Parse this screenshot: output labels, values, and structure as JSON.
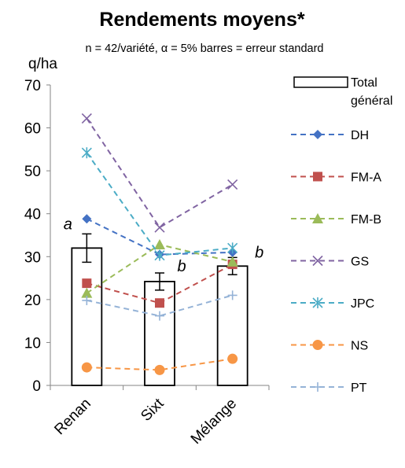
{
  "chart_data": {
    "type": "bar",
    "title": "Rendements moyens*",
    "subtitle": "n = 42/variété, α = 5% barres = erreur standard",
    "ylabel": "q/ha",
    "ylim": [
      0,
      70
    ],
    "yticks": [
      0,
      10,
      20,
      30,
      40,
      50,
      60,
      70
    ],
    "categories": [
      "Renan",
      "Sixt",
      "Mélange"
    ],
    "grid": false,
    "legend_position": "right",
    "bar_series": {
      "name": "Total général",
      "values": [
        32.0,
        24.2,
        27.8
      ],
      "errors": [
        3.3,
        2.0,
        2.0
      ],
      "significance_letters": [
        "a",
        "b",
        "b"
      ],
      "color": "#000000"
    },
    "line_series": [
      {
        "name": "DH",
        "values": [
          38.8,
          30.5,
          31.0
        ],
        "color": "#4472C4",
        "marker": "diamond"
      },
      {
        "name": "FM-A",
        "values": [
          23.8,
          19.2,
          28.2
        ],
        "color": "#C0504D",
        "marker": "square"
      },
      {
        "name": "FM-B",
        "values": [
          21.5,
          32.8,
          28.8
        ],
        "color": "#9BBB59",
        "marker": "triangle"
      },
      {
        "name": "GS",
        "values": [
          62.2,
          36.8,
          46.8
        ],
        "color": "#8064A2",
        "marker": "x"
      },
      {
        "name": "JPC",
        "values": [
          54.2,
          30.3,
          32.0
        ],
        "color": "#4BACC6",
        "marker": "star"
      },
      {
        "name": "NS",
        "values": [
          4.2,
          3.6,
          6.2
        ],
        "color": "#F79646",
        "marker": "circle"
      },
      {
        "name": "PT",
        "values": [
          19.8,
          16.2,
          21.0
        ],
        "color": "#95B3D7",
        "marker": "plus"
      }
    ]
  }
}
